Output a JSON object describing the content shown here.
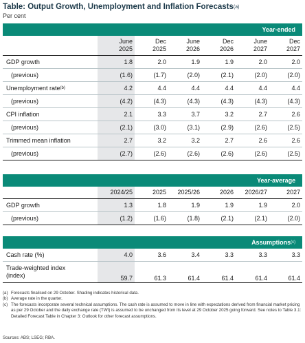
{
  "title": "Table: Output Growth, Unemployment and Inflation Forecasts",
  "title_note": "(a)",
  "unit": "Per cent",
  "shade_color": "#e6e7e9",
  "band_color": "#0a8a78",
  "section1": {
    "band": "Year-ended",
    "columns": [
      [
        "June",
        "2025"
      ],
      [
        "Dec",
        "2025"
      ],
      [
        "June",
        "2026"
      ],
      [
        "Dec",
        "2026"
      ],
      [
        "June",
        "2027"
      ],
      [
        "Dec",
        "2027"
      ]
    ],
    "rows": [
      {
        "label": "GDP growth",
        "note": "",
        "values": [
          "1.8",
          "2.0",
          "1.9",
          "1.9",
          "2.0",
          "2.0"
        ],
        "sub": false
      },
      {
        "label": "(previous)",
        "note": "",
        "values": [
          "(1.6)",
          "(1.7)",
          "(2.0)",
          "(2.1)",
          "(2.0)",
          "(2.0)"
        ],
        "sub": true
      },
      {
        "label": "Unemployment rate",
        "note": "(b)",
        "values": [
          "4.2",
          "4.4",
          "4.4",
          "4.4",
          "4.4",
          "4.4"
        ],
        "sub": false
      },
      {
        "label": "(previous)",
        "note": "",
        "values": [
          "(4.2)",
          "(4.3)",
          "(4.3)",
          "(4.3)",
          "(4.3)",
          "(4.3)"
        ],
        "sub": true
      },
      {
        "label": "CPI inflation",
        "note": "",
        "values": [
          "2.1",
          "3.3",
          "3.7",
          "3.2",
          "2.7",
          "2.6"
        ],
        "sub": false
      },
      {
        "label": "(previous)",
        "note": "",
        "values": [
          "(2.1)",
          "(3.0)",
          "(3.1)",
          "(2.9)",
          "(2.6)",
          "(2.5)"
        ],
        "sub": true
      },
      {
        "label": "Trimmed mean inflation",
        "note": "",
        "values": [
          "2.7",
          "3.2",
          "3.2",
          "2.7",
          "2.6",
          "2.6"
        ],
        "sub": false
      },
      {
        "label": "(previous)",
        "note": "",
        "values": [
          "(2.7)",
          "(2.6)",
          "(2.6)",
          "(2.6)",
          "(2.6)",
          "(2.5)"
        ],
        "sub": true
      }
    ]
  },
  "section2": {
    "band": "Year-average",
    "columns": [
      "2024/25",
      "2025",
      "2025/26",
      "2026",
      "2026/27",
      "2027"
    ],
    "rows": [
      {
        "label": "GDP growth",
        "values": [
          "1.3",
          "1.8",
          "1.9",
          "1.9",
          "1.9",
          "2.0"
        ],
        "sub": false
      },
      {
        "label": "(previous)",
        "values": [
          "(1.2)",
          "(1.6)",
          "(1.8)",
          "(2.1)",
          "(2.1)",
          "(2.0)"
        ],
        "sub": true
      }
    ]
  },
  "section3": {
    "band": "Assumptions",
    "band_note": "(c)",
    "rows": [
      {
        "label": "Cash rate (%)",
        "label2": "",
        "values": [
          "4.0",
          "3.6",
          "3.4",
          "3.3",
          "3.3",
          "3.3"
        ]
      },
      {
        "label": "Trade-weighted index",
        "label2": "(index)",
        "values": [
          "59.7",
          "61.3",
          "61.4",
          "61.4",
          "61.4",
          "61.4"
        ]
      }
    ]
  },
  "notes": [
    {
      "key": "(a)",
      "text": "Forecasts finalised on 29 October. Shading indicates historical data."
    },
    {
      "key": "(b)",
      "text": "Average rate in the quarter."
    },
    {
      "key": "(c)",
      "text": "The forecasts incorporate several technical assumptions. The cash rate is assumed to move in line with expectations derived from financial market pricing as per 29 October and the daily exchange rate (TWI) is assumed to be unchanged from its level at 29 October 2025 going forward. See notes to Table 3.1: Detailed Forecast Table in Chapter 3: Outlook for other forecast assumptions."
    }
  ],
  "sources": "Sources: ABS; LSEG; RBA."
}
